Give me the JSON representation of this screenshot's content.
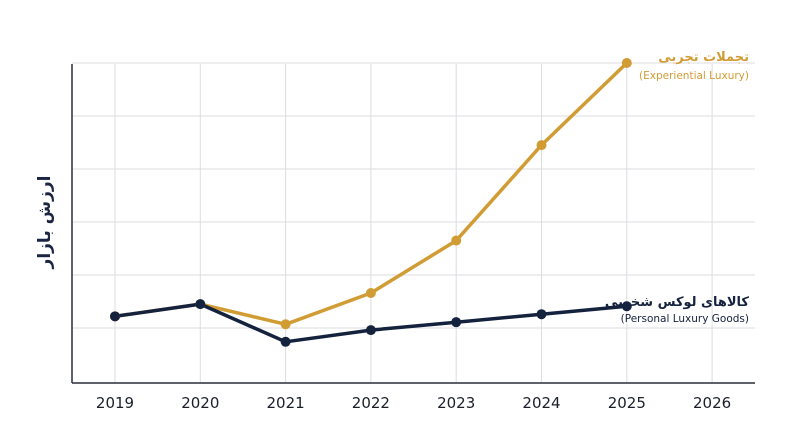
{
  "chart_data": {
    "type": "line",
    "x": [
      "2019",
      "2020",
      "2021",
      "2022",
      "2023",
      "2024",
      "2025",
      "2026"
    ],
    "xlabel": "",
    "ylabel": "ارزش بازار",
    "y_tick_labels_shown": false,
    "ylim": [
      0,
      6
    ],
    "grid": true,
    "series": [
      {
        "name": "تجملات تجربی",
        "subtitle": "(Experiential Luxury)",
        "color": "#d19c34",
        "values": [
          1.22,
          1.45,
          1.07,
          1.66,
          2.65,
          4.45,
          6.0,
          null
        ]
      },
      {
        "name": "کالاهای لوکس شخصی",
        "subtitle": "(Personal Luxury Goods)",
        "color": "#15223e",
        "values": [
          1.22,
          1.45,
          0.74,
          0.96,
          1.11,
          1.26,
          1.41,
          null
        ]
      }
    ]
  }
}
